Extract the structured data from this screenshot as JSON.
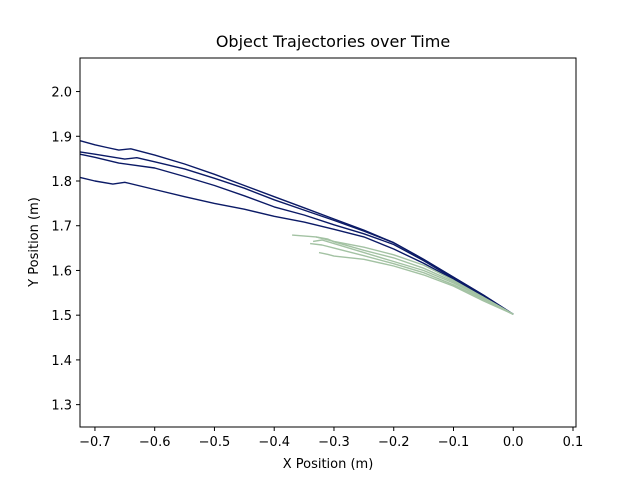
{
  "chart_data": {
    "type": "line",
    "title": "Object Trajectories over Time",
    "xlabel": "X Position (m)",
    "ylabel": "Y Position (m)",
    "xlim": [
      -0.725,
      0.105
    ],
    "ylim": [
      1.25,
      2.075
    ],
    "x_ticks": [
      -0.7,
      -0.6,
      -0.5,
      -0.4,
      -0.3,
      -0.2,
      -0.1,
      0.0,
      0.1
    ],
    "x_tick_labels": [
      "−0.7",
      "−0.6",
      "−0.5",
      "−0.4",
      "−0.3",
      "−0.2",
      "−0.1",
      "0.0",
      "0.1"
    ],
    "y_ticks": [
      1.3,
      1.4,
      1.5,
      1.6,
      1.7,
      1.8,
      1.9,
      2.0
    ],
    "y_tick_labels": [
      "1.3",
      "1.4",
      "1.5",
      "1.6",
      "1.7",
      "1.8",
      "1.9",
      "2.0"
    ],
    "grid": false,
    "legend": "none",
    "series": [
      {
        "color": "#0b1a66",
        "x": [
          -0.725,
          -0.7,
          -0.68,
          -0.66,
          -0.64,
          -0.6,
          -0.55,
          -0.5,
          -0.45,
          -0.4,
          -0.35,
          -0.3,
          -0.25,
          -0.2,
          -0.15,
          -0.1,
          -0.05,
          0.0
        ],
        "y": [
          1.89,
          1.881,
          1.875,
          1.869,
          1.872,
          1.858,
          1.838,
          1.815,
          1.79,
          1.765,
          1.74,
          1.715,
          1.69,
          1.662,
          1.625,
          1.585,
          1.545,
          1.502
        ]
      },
      {
        "color": "#0b1a66",
        "x": [
          -0.725,
          -0.7,
          -0.65,
          -0.63,
          -0.6,
          -0.55,
          -0.5,
          -0.45,
          -0.4,
          -0.35,
          -0.3,
          -0.25,
          -0.2,
          -0.15,
          -0.1,
          -0.05,
          0.0
        ],
        "y": [
          1.865,
          1.86,
          1.849,
          1.852,
          1.843,
          1.827,
          1.806,
          1.784,
          1.758,
          1.735,
          1.712,
          1.688,
          1.662,
          1.625,
          1.585,
          1.545,
          1.502
        ]
      },
      {
        "color": "#0b1a66",
        "x": [
          -0.725,
          -0.7,
          -0.66,
          -0.6,
          -0.55,
          -0.5,
          -0.45,
          -0.4,
          -0.35,
          -0.3,
          -0.25,
          -0.2,
          -0.15,
          -0.1,
          -0.05,
          0.0
        ],
        "y": [
          1.86,
          1.853,
          1.84,
          1.829,
          1.81,
          1.79,
          1.767,
          1.742,
          1.724,
          1.702,
          1.682,
          1.658,
          1.622,
          1.582,
          1.542,
          1.502
        ]
      },
      {
        "color": "#0b1a66",
        "x": [
          -0.725,
          -0.7,
          -0.67,
          -0.65,
          -0.6,
          -0.55,
          -0.5,
          -0.45,
          -0.4,
          -0.35,
          -0.3,
          -0.25,
          -0.2,
          -0.15,
          -0.1,
          -0.05,
          0.0
        ],
        "y": [
          1.808,
          1.8,
          1.793,
          1.797,
          1.781,
          1.765,
          1.75,
          1.737,
          1.721,
          1.708,
          1.692,
          1.675,
          1.648,
          1.616,
          1.58,
          1.54,
          1.502
        ]
      },
      {
        "color": "#a3c2a3",
        "x": [
          -0.37,
          -0.33,
          -0.3,
          -0.25,
          -0.2,
          -0.15,
          -0.1,
          -0.05,
          0.0
        ],
        "y": [
          1.679,
          1.675,
          1.665,
          1.652,
          1.635,
          1.612,
          1.578,
          1.54,
          1.502
        ]
      },
      {
        "color": "#a3c2a3",
        "x": [
          -0.33,
          -0.31,
          -0.3,
          -0.25,
          -0.2,
          -0.15,
          -0.1,
          -0.05,
          0.0
        ],
        "y": [
          1.675,
          1.67,
          1.664,
          1.645,
          1.628,
          1.605,
          1.575,
          1.54,
          1.502
        ]
      },
      {
        "color": "#a3c2a3",
        "x": [
          -0.335,
          -0.32,
          -0.3,
          -0.25,
          -0.2,
          -0.15,
          -0.1,
          -0.05,
          0.0
        ],
        "y": [
          1.665,
          1.668,
          1.66,
          1.64,
          1.62,
          1.6,
          1.572,
          1.538,
          1.502
        ]
      },
      {
        "color": "#a3c2a3",
        "x": [
          -0.34,
          -0.32,
          -0.3,
          -0.25,
          -0.2,
          -0.15,
          -0.1,
          -0.05,
          0.0
        ],
        "y": [
          1.66,
          1.657,
          1.65,
          1.633,
          1.615,
          1.595,
          1.568,
          1.535,
          1.502
        ]
      },
      {
        "color": "#a3c2a3",
        "x": [
          -0.325,
          -0.31,
          -0.3,
          -0.25,
          -0.2,
          -0.15,
          -0.1,
          -0.05,
          0.0
        ],
        "y": [
          1.64,
          1.636,
          1.632,
          1.625,
          1.61,
          1.59,
          1.565,
          1.532,
          1.502
        ]
      }
    ]
  }
}
